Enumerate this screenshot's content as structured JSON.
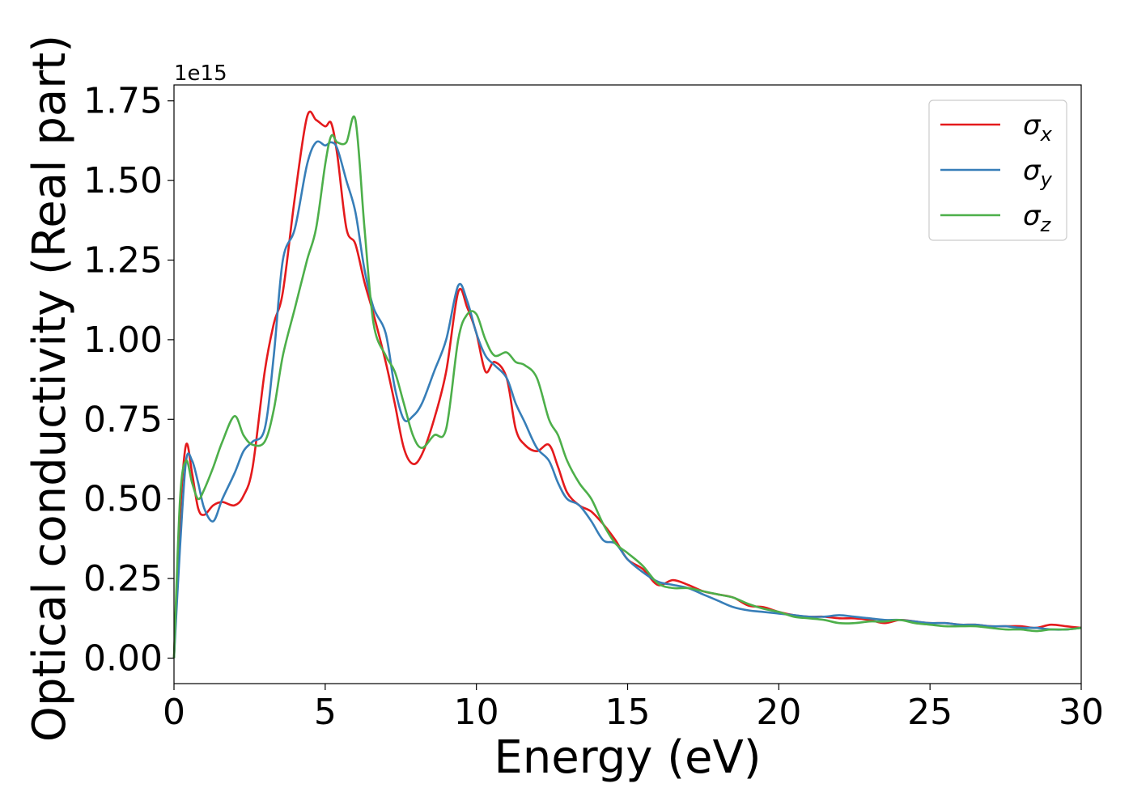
{
  "chart_data": {
    "type": "line",
    "xlabel": "Energy (eV)",
    "ylabel": "Optical conductivity (Real part)",
    "y_offset_label": "1e15",
    "y_scale": 1000000000000000.0,
    "xlim": [
      0,
      30
    ],
    "ylim": [
      -0.08,
      1.8
    ],
    "x_ticks": [
      0,
      5,
      10,
      15,
      20,
      25,
      30
    ],
    "x_tick_labels": [
      "0",
      "5",
      "10",
      "15",
      "20",
      "25",
      "30"
    ],
    "y_ticks": [
      0.0,
      0.25,
      0.5,
      0.75,
      1.0,
      1.25,
      1.5,
      1.75
    ],
    "y_tick_labels": [
      "0.00",
      "0.25",
      "0.50",
      "0.75",
      "1.00",
      "1.25",
      "1.50",
      "1.75"
    ],
    "grid": false,
    "legend_position": "top-right",
    "series": [
      {
        "name": "σx",
        "symbol": "σ",
        "subscript": "x",
        "color": "#e41a1c",
        "x": [
          0,
          0.2,
          0.4,
          0.6,
          0.8,
          1.0,
          1.3,
          1.6,
          2.0,
          2.3,
          2.6,
          3.0,
          3.3,
          3.6,
          4.0,
          4.4,
          4.7,
          5.0,
          5.2,
          5.4,
          5.7,
          6.0,
          6.3,
          6.6,
          7.0,
          7.3,
          7.6,
          7.9,
          8.2,
          8.6,
          9.0,
          9.4,
          9.7,
          10.0,
          10.3,
          10.6,
          11.0,
          11.3,
          11.6,
          12.0,
          12.4,
          12.7,
          13.0,
          13.4,
          13.8,
          14.2,
          14.6,
          15.0,
          15.5,
          16.0,
          16.5,
          17.0,
          17.5,
          18.0,
          18.5,
          19.0,
          19.5,
          20.0,
          20.5,
          21.0,
          21.5,
          22.0,
          22.5,
          23.0,
          23.5,
          24.0,
          24.5,
          25.0,
          25.5,
          26.0,
          26.5,
          27.0,
          27.5,
          28.0,
          28.5,
          29.0,
          29.5,
          30.0
        ],
        "y": [
          0,
          0.45,
          0.67,
          0.58,
          0.47,
          0.45,
          0.48,
          0.49,
          0.48,
          0.51,
          0.6,
          0.9,
          1.05,
          1.15,
          1.45,
          1.7,
          1.69,
          1.67,
          1.68,
          1.58,
          1.35,
          1.3,
          1.18,
          1.08,
          0.93,
          0.8,
          0.66,
          0.61,
          0.64,
          0.75,
          0.9,
          1.15,
          1.1,
          1.02,
          0.9,
          0.93,
          0.88,
          0.72,
          0.67,
          0.65,
          0.67,
          0.6,
          0.52,
          0.48,
          0.46,
          0.42,
          0.37,
          0.31,
          0.28,
          0.23,
          0.245,
          0.23,
          0.21,
          0.2,
          0.19,
          0.165,
          0.16,
          0.145,
          0.135,
          0.13,
          0.13,
          0.125,
          0.125,
          0.12,
          0.11,
          0.12,
          0.115,
          0.11,
          0.11,
          0.105,
          0.105,
          0.1,
          0.1,
          0.1,
          0.095,
          0.105,
          0.1,
          0.095
        ]
      },
      {
        "name": "σy",
        "symbol": "σ",
        "subscript": "y",
        "color": "#377eb8",
        "x": [
          0,
          0.2,
          0.4,
          0.6,
          0.8,
          1.0,
          1.3,
          1.6,
          2.0,
          2.3,
          2.6,
          3.0,
          3.3,
          3.6,
          4.0,
          4.4,
          4.7,
          5.0,
          5.2,
          5.4,
          5.7,
          6.0,
          6.3,
          6.6,
          7.0,
          7.3,
          7.6,
          7.9,
          8.2,
          8.6,
          9.0,
          9.4,
          9.7,
          10.0,
          10.3,
          10.6,
          11.0,
          11.3,
          11.6,
          12.0,
          12.4,
          12.7,
          13.0,
          13.4,
          13.8,
          14.2,
          14.6,
          15.0,
          15.5,
          16.0,
          16.5,
          17.0,
          17.5,
          18.0,
          18.5,
          19.0,
          19.5,
          20.0,
          20.5,
          21.0,
          21.5,
          22.0,
          22.5,
          23.0,
          23.5,
          24.0,
          24.5,
          25.0,
          25.5,
          26.0,
          26.5,
          27.0,
          27.5,
          28.0,
          28.5,
          29.0,
          29.5,
          30.0
        ],
        "y": [
          0,
          0.35,
          0.62,
          0.62,
          0.55,
          0.47,
          0.43,
          0.5,
          0.58,
          0.65,
          0.68,
          0.72,
          0.95,
          1.25,
          1.35,
          1.55,
          1.62,
          1.61,
          1.62,
          1.6,
          1.5,
          1.4,
          1.22,
          1.1,
          1.02,
          0.85,
          0.75,
          0.76,
          0.8,
          0.9,
          1.0,
          1.17,
          1.12,
          1.02,
          0.95,
          0.92,
          0.88,
          0.8,
          0.74,
          0.66,
          0.62,
          0.55,
          0.5,
          0.48,
          0.43,
          0.37,
          0.36,
          0.31,
          0.27,
          0.24,
          0.23,
          0.22,
          0.2,
          0.18,
          0.16,
          0.15,
          0.145,
          0.14,
          0.135,
          0.13,
          0.13,
          0.135,
          0.13,
          0.125,
          0.12,
          0.12,
          0.115,
          0.11,
          0.11,
          0.105,
          0.105,
          0.1,
          0.1,
          0.095,
          0.095,
          0.09,
          0.09,
          0.095
        ]
      },
      {
        "name": "σz",
        "symbol": "σ",
        "subscript": "z",
        "color": "#4daf4a",
        "x": [
          0,
          0.2,
          0.4,
          0.6,
          0.8,
          1.0,
          1.3,
          1.6,
          2.0,
          2.3,
          2.6,
          3.0,
          3.3,
          3.6,
          4.0,
          4.4,
          4.7,
          5.0,
          5.2,
          5.4,
          5.7,
          6.0,
          6.3,
          6.6,
          7.0,
          7.3,
          7.6,
          7.9,
          8.2,
          8.6,
          9.0,
          9.4,
          9.7,
          10.0,
          10.3,
          10.6,
          11.0,
          11.3,
          11.6,
          12.0,
          12.4,
          12.7,
          13.0,
          13.4,
          13.8,
          14.2,
          14.6,
          15.0,
          15.5,
          16.0,
          16.5,
          17.0,
          17.5,
          18.0,
          18.5,
          19.0,
          19.5,
          20.0,
          20.5,
          21.0,
          21.5,
          22.0,
          22.5,
          23.0,
          23.5,
          24.0,
          24.5,
          25.0,
          25.5,
          26.0,
          26.5,
          27.0,
          27.5,
          28.0,
          28.5,
          29.0,
          29.5,
          30.0
        ],
        "y": [
          0,
          0.5,
          0.62,
          0.55,
          0.5,
          0.53,
          0.6,
          0.68,
          0.76,
          0.7,
          0.67,
          0.68,
          0.78,
          0.95,
          1.1,
          1.25,
          1.35,
          1.55,
          1.64,
          1.62,
          1.62,
          1.69,
          1.35,
          1.05,
          0.95,
          0.9,
          0.8,
          0.7,
          0.66,
          0.7,
          0.72,
          1.0,
          1.08,
          1.08,
          1.0,
          0.95,
          0.96,
          0.93,
          0.92,
          0.88,
          0.75,
          0.7,
          0.62,
          0.55,
          0.5,
          0.42,
          0.36,
          0.33,
          0.29,
          0.235,
          0.22,
          0.22,
          0.21,
          0.2,
          0.19,
          0.17,
          0.155,
          0.145,
          0.13,
          0.125,
          0.12,
          0.11,
          0.11,
          0.115,
          0.115,
          0.12,
          0.11,
          0.105,
          0.1,
          0.1,
          0.1,
          0.095,
          0.09,
          0.09,
          0.085,
          0.09,
          0.09,
          0.095
        ]
      }
    ]
  }
}
